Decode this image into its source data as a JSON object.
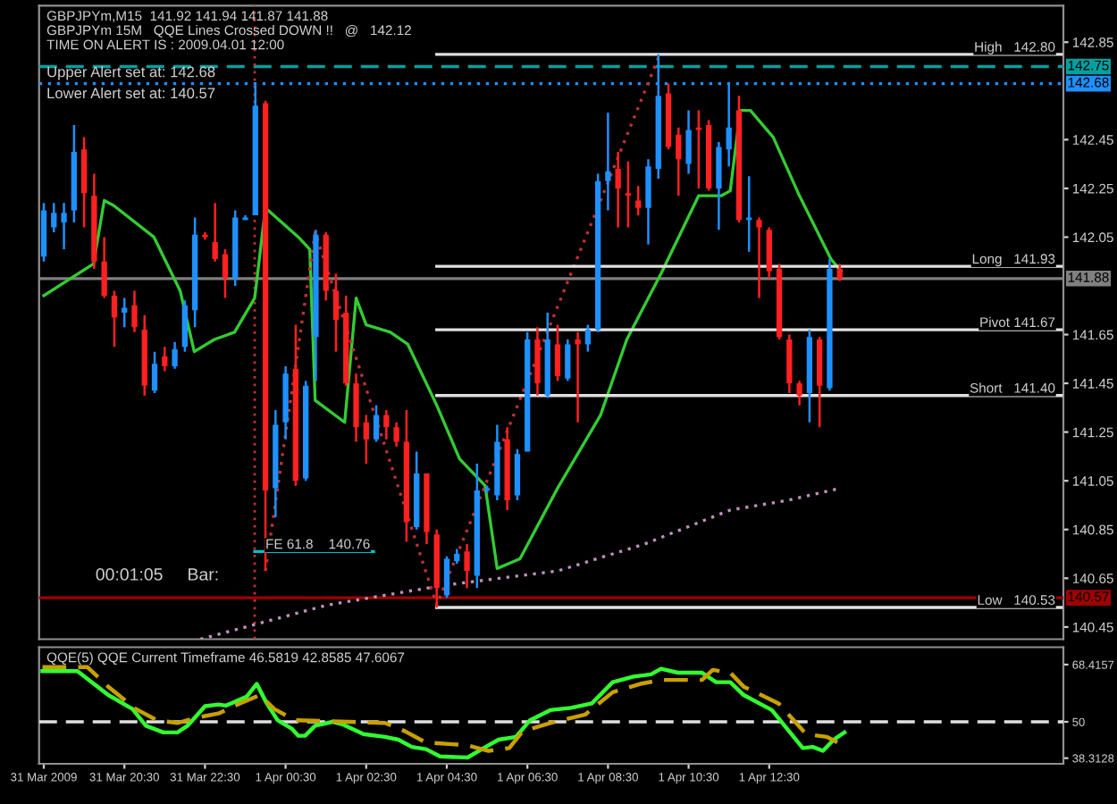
{
  "chart_data": [
    {
      "type": "candlestick",
      "title": "GBPJPYm,M15  141.92 141.94 141.87 141.88",
      "x": [
        "2009-03-31T18:30",
        "2009-03-31T18:45",
        "2009-03-31T19:00",
        "2009-03-31T19:15",
        "2009-03-31T19:30",
        "2009-03-31T19:45",
        "2009-03-31T20:00",
        "2009-03-31T20:15",
        "2009-03-31T20:30",
        "2009-03-31T20:45",
        "2009-03-31T21:00",
        "2009-03-31T21:15",
        "2009-03-31T21:30",
        "2009-03-31T21:45",
        "2009-03-31T22:00",
        "2009-03-31T22:15",
        "2009-03-31T22:30",
        "2009-03-31T22:45",
        "2009-03-31T23:00",
        "2009-03-31T23:15",
        "2009-03-31T23:30",
        "2009-03-31T23:45",
        "2009-04-01T00:00",
        "2009-04-01T00:15",
        "2009-04-01T00:30",
        "2009-04-01T00:45",
        "2009-04-01T01:00",
        "2009-04-01T01:15",
        "2009-04-01T01:30",
        "2009-04-01T01:45",
        "2009-04-01T02:00",
        "2009-04-01T02:15",
        "2009-04-01T02:30",
        "2009-04-01T02:45",
        "2009-04-01T03:00",
        "2009-04-01T03:15",
        "2009-04-01T03:30",
        "2009-04-01T03:45",
        "2009-04-01T04:00",
        "2009-04-01T04:15",
        "2009-04-01T04:30",
        "2009-04-01T04:45",
        "2009-04-01T05:00",
        "2009-04-01T05:15",
        "2009-04-01T05:30",
        "2009-04-01T05:45",
        "2009-04-01T06:00",
        "2009-04-01T06:15",
        "2009-04-01T06:30",
        "2009-04-01T06:45",
        "2009-04-01T07:00",
        "2009-04-01T07:15",
        "2009-04-01T07:30",
        "2009-04-01T07:45",
        "2009-04-01T08:00",
        "2009-04-01T08:15",
        "2009-04-01T08:30",
        "2009-04-01T08:45",
        "2009-04-01T09:00",
        "2009-04-01T09:15",
        "2009-04-01T09:30",
        "2009-04-01T09:45",
        "2009-04-01T10:00",
        "2009-04-01T10:15",
        "2009-04-01T10:30",
        "2009-04-01T10:45",
        "2009-04-01T11:00",
        "2009-04-01T11:15",
        "2009-04-01T11:30",
        "2009-04-01T11:45",
        "2009-04-01T12:00",
        "2009-04-01T12:15",
        "2009-04-01T12:30",
        "2009-04-01T12:45",
        "2009-04-01T13:00",
        "2009-04-01T13:15",
        "2009-04-01T13:30",
        "2009-04-01T13:45",
        "2009-04-01T14:00",
        "2009-04-01T14:15"
      ],
      "ohlc": [
        [
          141.97,
          142.19,
          141.95,
          142.16
        ],
        [
          142.09,
          142.19,
          142.07,
          142.15
        ],
        [
          142.11,
          142.19,
          142.0,
          142.15
        ],
        [
          142.16,
          142.51,
          142.11,
          142.4
        ],
        [
          142.41,
          142.46,
          142.09,
          142.23
        ],
        [
          142.22,
          142.31,
          141.92,
          141.95
        ],
        [
          141.95,
          142.05,
          141.8,
          141.81
        ],
        [
          141.81,
          141.83,
          141.6,
          141.72
        ],
        [
          141.74,
          141.8,
          141.68,
          141.76
        ],
        [
          141.77,
          141.83,
          141.66,
          141.68
        ],
        [
          141.67,
          141.73,
          141.4,
          141.44
        ],
        [
          141.42,
          141.58,
          141.41,
          141.53
        ],
        [
          141.56,
          141.6,
          141.5,
          141.52
        ],
        [
          141.52,
          141.62,
          141.51,
          141.59
        ],
        [
          141.6,
          141.79,
          141.58,
          141.77
        ],
        [
          141.75,
          142.13,
          141.68,
          142.06
        ],
        [
          142.06,
          142.07,
          142.04,
          142.05
        ],
        [
          142.03,
          142.19,
          141.95,
          141.96
        ],
        [
          141.98,
          142.0,
          141.8,
          141.88
        ],
        [
          141.88,
          142.16,
          141.85,
          142.13
        ],
        [
          142.12,
          142.14,
          142.12,
          142.13
        ],
        [
          142.14,
          142.68,
          142.14,
          142.59
        ],
        [
          142.6,
          142.61,
          140.68,
          141.01
        ],
        [
          141.02,
          141.34,
          140.9,
          141.28
        ],
        [
          141.29,
          141.52,
          141.22,
          141.49
        ],
        [
          141.51,
          141.69,
          141.03,
          141.05
        ],
        [
          141.06,
          141.46,
          141.05,
          141.44
        ],
        [
          141.64,
          142.08,
          141.46,
          142.06
        ],
        [
          142.06,
          142.07,
          141.79,
          141.83
        ],
        [
          141.83,
          141.9,
          141.58,
          141.71
        ],
        [
          141.74,
          141.81,
          141.44,
          141.45
        ],
        [
          141.45,
          141.49,
          141.21,
          141.27
        ],
        [
          141.29,
          141.32,
          141.12,
          141.22
        ],
        [
          141.22,
          141.36,
          141.21,
          141.32
        ],
        [
          141.32,
          141.34,
          141.22,
          141.27
        ],
        [
          141.27,
          141.29,
          141.19,
          141.21
        ],
        [
          141.21,
          141.34,
          140.8,
          140.88
        ],
        [
          140.86,
          141.17,
          140.85,
          141.08
        ],
        [
          141.08,
          141.08,
          140.79,
          140.84
        ],
        [
          140.83,
          140.85,
          140.53,
          140.61
        ],
        [
          140.58,
          140.74,
          140.57,
          140.73
        ],
        [
          140.72,
          140.77,
          140.71,
          140.75
        ],
        [
          140.76,
          140.79,
          140.61,
          140.68
        ],
        [
          140.66,
          141.12,
          140.61,
          141.01
        ],
        [
          141.01,
          141.03,
          141.0,
          141.02
        ],
        [
          140.99,
          141.28,
          140.97,
          141.21
        ],
        [
          141.22,
          141.27,
          140.93,
          140.97
        ],
        [
          140.99,
          141.18,
          140.97,
          141.16
        ],
        [
          141.17,
          141.66,
          141.17,
          141.63
        ],
        [
          141.63,
          141.68,
          141.4,
          141.45
        ],
        [
          141.4,
          141.74,
          141.39,
          141.63
        ],
        [
          141.61,
          141.69,
          141.46,
          141.48
        ],
        [
          141.47,
          141.63,
          141.46,
          141.61
        ],
        [
          141.63,
          141.66,
          141.29,
          141.61
        ],
        [
          141.61,
          141.69,
          141.58,
          141.67
        ],
        [
          141.67,
          142.31,
          141.66,
          142.28
        ],
        [
          142.28,
          142.56,
          142.16,
          142.32
        ],
        [
          142.33,
          142.4,
          142.09,
          142.25
        ],
        [
          142.23,
          142.36,
          142.09,
          142.22
        ],
        [
          142.2,
          142.26,
          142.14,
          142.17
        ],
        [
          142.17,
          142.37,
          142.02,
          142.34
        ],
        [
          142.33,
          142.8,
          142.29,
          142.63
        ],
        [
          142.64,
          142.68,
          142.41,
          142.42
        ],
        [
          142.47,
          142.5,
          142.22,
          142.37
        ],
        [
          142.35,
          142.57,
          142.31,
          142.49
        ],
        [
          142.5,
          142.57,
          142.25,
          142.49
        ],
        [
          142.51,
          142.53,
          142.24,
          142.25
        ],
        [
          142.25,
          142.44,
          142.08,
          142.42
        ],
        [
          142.41,
          142.68,
          142.34,
          142.5
        ],
        [
          142.57,
          142.63,
          142.11,
          142.12
        ],
        [
          142.12,
          142.3,
          141.99,
          142.13
        ],
        [
          142.12,
          142.13,
          141.8,
          142.09
        ],
        [
          142.08,
          142.09,
          141.88,
          141.91
        ],
        [
          141.92,
          141.94,
          141.63,
          141.64
        ],
        [
          141.63,
          141.65,
          141.41,
          141.45
        ],
        [
          141.45,
          141.46,
          141.36,
          141.4
        ],
        [
          141.41,
          141.67,
          141.29,
          141.64
        ],
        [
          141.63,
          141.64,
          141.27,
          141.44
        ],
        [
          141.43,
          141.96,
          141.42,
          141.92
        ],
        [
          141.92,
          141.94,
          141.87,
          141.88
        ]
      ],
      "colors": [
        "#1e90ff",
        "#1e90ff",
        "#1e90ff",
        "#1e90ff",
        "#ff2020",
        "#ff2020",
        "#ff2020",
        "#ff2020",
        "#1e90ff",
        "#ff2020",
        "#ff2020",
        "#1e90ff",
        "#ff2020",
        "#1e90ff",
        "#1e90ff",
        "#1e90ff",
        "#ff2020",
        "#ff2020",
        "#ff2020",
        "#1e90ff",
        "#1e90ff",
        "#1e90ff",
        "#ff2020",
        "#1e90ff",
        "#1e90ff",
        "#ff2020",
        "#1e90ff",
        "#1e90ff",
        "#ff2020",
        "#ff2020",
        "#ff2020",
        "#ff2020",
        "#ff2020",
        "#1e90ff",
        "#ff2020",
        "#ff2020",
        "#ff2020",
        "#1e90ff",
        "#ff2020",
        "#ff2020",
        "#1e90ff",
        "#1e90ff",
        "#ff2020",
        "#1e90ff",
        "#1e90ff",
        "#1e90ff",
        "#ff2020",
        "#1e90ff",
        "#1e90ff",
        "#ff2020",
        "#1e90ff",
        "#ff2020",
        "#1e90ff",
        "#ff2020",
        "#1e90ff",
        "#1e90ff",
        "#1e90ff",
        "#ff2020",
        "#ff2020",
        "#ff2020",
        "#1e90ff",
        "#1e90ff",
        "#ff2020",
        "#ff2020",
        "#1e90ff",
        "#ff2020",
        "#ff2020",
        "#1e90ff",
        "#1e90ff",
        "#ff2020",
        "#1e90ff",
        "#ff2020",
        "#ff2020",
        "#ff2020",
        "#ff2020",
        "#ff2020",
        "#1e90ff",
        "#ff2020",
        "#1e90ff",
        "#ff2020"
      ],
      "series": [
        {
          "type": "line",
          "color": "#32cd32",
          "line_style": "solid",
          "x": [
            "2009-03-31T18:30",
            "2009-03-31T19:44",
            "2009-03-31T20:00",
            "2009-03-31T20:14",
            "2009-03-31T21:14",
            "2009-03-31T21:53",
            "2009-03-31T22:14",
            "2009-03-31T22:44",
            "2009-03-31T23:14",
            "2009-03-31T23:44",
            "2009-04-01T00:00",
            "2009-04-01T00:49",
            "2009-04-01T01:06",
            "2009-04-01T01:14",
            "2009-04-01T01:58",
            "2009-04-01T02:15",
            "2009-04-01T02:30",
            "2009-04-01T03:06",
            "2009-04-01T03:32",
            "2009-04-01T04:15",
            "2009-04-01T04:49",
            "2009-04-01T05:27",
            "2009-04-01T05:45",
            "2009-04-01T06:19",
            "2009-04-01T07:15",
            "2009-04-01T08:19",
            "2009-04-01T08:58",
            "2009-04-01T09:49",
            "2009-04-01T10:45",
            "2009-04-01T11:19",
            "2009-04-01T11:32",
            "2009-04-01T11:47",
            "2009-04-01T12:02",
            "2009-04-01T12:36",
            "2009-04-01T13:15",
            "2009-04-01T14:02",
            "2009-04-01T14:17"
          ],
          "values": [
            141.81,
            141.94,
            142.2,
            142.18,
            142.05,
            141.83,
            141.58,
            141.63,
            141.66,
            141.8,
            142.17,
            142.05,
            142.0,
            141.38,
            141.29,
            141.8,
            141.69,
            141.66,
            141.61,
            141.36,
            141.14,
            141.03,
            140.69,
            140.73,
            141.02,
            141.32,
            141.63,
            141.9,
            142.22,
            142.22,
            142.24,
            142.57,
            142.57,
            142.46,
            142.22,
            141.96,
            141.91
          ]
        },
        {
          "type": "line",
          "color": "#c090c0",
          "line_style": "dotted",
          "x": [
            "2009-03-31T22:23",
            "2009-04-01T01:32",
            "2009-04-01T04:23",
            "2009-04-01T07:15",
            "2009-04-01T09:24",
            "2009-04-01T11:32",
            "2009-04-01T12:58",
            "2009-04-01T14:17"
          ],
          "values": [
            140.4,
            140.54,
            140.62,
            140.68,
            140.79,
            140.93,
            140.97,
            141.02
          ]
        },
        {
          "type": "line",
          "color": "#c03030",
          "line_style": "dotted",
          "x": [
            "2009-04-01T00:00",
            "2009-04-01T01:14",
            "2009-04-01T04:15",
            "2009-04-01T09:47"
          ],
          "values": [
            140.68,
            142.07,
            140.54,
            142.8
          ]
        },
        {
          "type": "line",
          "color": "#e0e0e0",
          "line_style": "solid",
          "x": [
            "2009-04-01T04:15",
            "2009-04-01T19:45"
          ],
          "values": [
            142.8,
            142.8
          ]
        },
        {
          "type": "line",
          "color": "#e0e0e0",
          "line_style": "solid",
          "x": [
            "2009-04-01T04:15",
            "2009-04-01T19:45"
          ],
          "values": [
            141.93,
            141.93
          ]
        },
        {
          "type": "line",
          "color": "#e0e0e0",
          "line_style": "solid",
          "x": [
            "2009-04-01T04:15",
            "2009-04-01T19:45"
          ],
          "values": [
            141.67,
            141.67
          ]
        },
        {
          "type": "line",
          "color": "#e0e0e0",
          "line_style": "solid",
          "x": [
            "2009-04-01T04:15",
            "2009-04-01T19:45"
          ],
          "values": [
            141.4,
            141.4
          ]
        },
        {
          "type": "line",
          "color": "#e0e0e0",
          "line_style": "solid",
          "x": [
            "2009-04-01T04:15",
            "2009-04-01T19:45"
          ],
          "values": [
            140.53,
            140.53
          ]
        },
        {
          "type": "line",
          "color": "#00c0c0",
          "line_style": "solid",
          "x": [
            "2009-03-31T23:44",
            "2009-04-01T02:41"
          ],
          "values": [
            140.76,
            140.76
          ]
        }
      ],
      "ref_lines": [
        {
          "axis": "y",
          "value": 142.75,
          "label": "142.75",
          "color": "#00a0a0",
          "line_style": "dashed"
        },
        {
          "axis": "y",
          "value": 142.68,
          "label": "142.68",
          "color": "#1e90ff",
          "line_style": "dotted"
        },
        {
          "axis": "y",
          "value": 141.88,
          "label": "141.88",
          "color": "#808080",
          "line_style": "solid"
        },
        {
          "axis": "y",
          "value": 140.57,
          "label": "140.57",
          "color": "#a00000",
          "line_style": "solid"
        },
        {
          "axis": "x",
          "value": "2009-03-31T23:44",
          "color": "#c03030",
          "line_style": "dotted"
        }
      ],
      "annotations": [
        "GBPJPYm 15M   QQE Lines Crossed DOWN !!   @   142.12",
        "TIME ON ALERT IS : 2009.04.01 12:00",
        "Upper Alert set at: 142.68",
        "Lower Alert set at: 140.57",
        {
          "text": "High   142.80",
          "x": "2009-04-01T19:36",
          "y": 142.8
        },
        {
          "text": "Long   141.93",
          "x": "2009-04-01T19:36",
          "y": 141.93
        },
        {
          "text": "Pivot 141.67",
          "x": "2009-04-01T19:36",
          "y": 141.67
        },
        {
          "text": "Short   141.40",
          "x": "2009-04-01T19:36",
          "y": 141.4
        },
        {
          "text": "Low   140.53",
          "x": "2009-04-01T19:36",
          "y": 140.53
        },
        {
          "text": "FE 61.8    140.76",
          "x": "2009-04-01T00:00",
          "y": 140.76
        },
        "00:01:05     Bar:"
      ],
      "xlim": [
        "2009-03-31T18:23",
        "2009-04-01T19:48"
      ],
      "ylim": [
        140.4,
        143.0
      ],
      "yticks": [
        140.45,
        140.65,
        140.85,
        141.05,
        141.25,
        141.45,
        141.65,
        142.05,
        142.25,
        142.45,
        142.85
      ],
      "tick_labels": "y"
    },
    {
      "type": "line",
      "title": "QQE(5) QQE Current Timeframe 46.5819 42.8585 47.6067",
      "series": [
        {
          "color": "#32ff32",
          "line_style": "solid",
          "x": [
            "2009-03-31T18:28",
            "2009-03-31T19:20",
            "2009-03-31T20:06",
            "2009-03-31T20:42",
            "2009-03-31T21:02",
            "2009-03-31T21:28",
            "2009-03-31T21:49",
            "2009-03-31T22:04",
            "2009-03-31T22:30",
            "2009-03-31T22:50",
            "2009-03-31T23:01",
            "2009-03-31T23:32",
            "2009-03-31T23:47",
            "2009-04-01T00:02",
            "2009-04-01T00:18",
            "2009-04-01T00:39",
            "2009-04-01T00:49",
            "2009-04-01T00:59",
            "2009-04-01T01:14",
            "2009-04-01T01:40",
            "2009-04-01T01:56",
            "2009-04-01T02:26",
            "2009-04-01T02:58",
            "2009-04-01T03:18",
            "2009-04-01T03:38",
            "2009-04-01T03:59",
            "2009-04-01T04:20",
            "2009-04-01T05:01",
            "2009-04-01T05:22",
            "2009-04-01T05:47",
            "2009-04-01T06:13",
            "2009-04-01T06:34",
            "2009-04-01T07:04",
            "2009-04-01T07:35",
            "2009-04-01T08:06",
            "2009-04-01T08:37",
            "2009-04-01T09:08",
            "2009-04-01T09:34",
            "2009-04-01T09:49",
            "2009-04-01T10:14",
            "2009-04-01T10:50",
            "2009-04-01T11:11",
            "2009-04-01T11:32",
            "2009-04-01T11:52",
            "2009-04-01T12:34",
            "2009-04-01T13:20",
            "2009-04-01T13:35",
            "2009-04-01T13:50",
            "2009-04-01T14:06",
            "2009-04-01T14:22"
          ],
          "values": [
            66.34,
            66.34,
            58.62,
            54.13,
            48.74,
            46.59,
            46.59,
            48.74,
            55.03,
            55.57,
            55.21,
            58.08,
            62.21,
            55.93,
            50.54,
            47.84,
            45.51,
            45.51,
            48.74,
            50.0,
            49.1,
            46.05,
            45.15,
            44.25,
            41.92,
            41.2,
            38.86,
            38.51,
            41.2,
            44.25,
            45.15,
            50.54,
            53.77,
            54.49,
            55.93,
            62.75,
            64.55,
            65.27,
            67.06,
            65.8,
            65.8,
            62.75,
            62.75,
            58.62,
            53.77,
            41.56,
            41.92,
            40.66,
            44.25,
            46.58
          ]
        },
        {
          "color": "#c8a000",
          "line_style": "dashed",
          "x": [
            "2009-03-31T18:28",
            "2009-03-31T19:35",
            "2009-03-31T20:06",
            "2009-03-31T20:47",
            "2009-03-31T21:18",
            "2009-03-31T21:49",
            "2009-03-31T22:20",
            "2009-03-31T22:50",
            "2009-03-31T23:22",
            "2009-03-31T23:52",
            "2009-04-01T00:13",
            "2009-04-01T00:44",
            "2009-04-01T02:58",
            "2009-04-01T03:28",
            "2009-04-01T03:59",
            "2009-04-01T05:01",
            "2009-04-01T05:32",
            "2009-04-01T06:03",
            "2009-04-01T06:23",
            "2009-04-01T07:04",
            "2009-04-01T07:56",
            "2009-04-01T08:37",
            "2009-04-01T09:18",
            "2009-04-01T09:49",
            "2009-04-01T10:50",
            "2009-04-01T11:06",
            "2009-04-01T11:32",
            "2009-04-01T11:52",
            "2009-04-01T12:44",
            "2009-04-01T13:25",
            "2009-04-01T13:56",
            "2009-04-01T14:16"
          ],
          "values": [
            67.6,
            67.6,
            61.31,
            54.13,
            50.54,
            49.64,
            51.44,
            52.69,
            55.93,
            58.62,
            54.13,
            50.54,
            49.64,
            46.95,
            43.35,
            42.46,
            40.66,
            41.56,
            46.95,
            49.64,
            52.33,
            59.52,
            62.21,
            63.47,
            63.47,
            66.7,
            65.8,
            61.31,
            55.93,
            46.05,
            45.15,
            42.86
          ]
        }
      ],
      "ref_lines": [
        {
          "axis": "y",
          "value": 50,
          "color": "#e0e0e0",
          "line_style": "dashed"
        }
      ],
      "xlim": [
        "2009-03-31T18:23",
        "2009-04-01T19:48"
      ],
      "ylim": [
        36.5,
        74
      ],
      "xticks": [
        {
          "value": "2009-03-31T18:30",
          "label": "31 Mar 2009"
        },
        {
          "value": "2009-03-31T20:30",
          "label": "31 Mar 20:30"
        },
        {
          "value": "2009-03-31T22:30",
          "label": "31 Mar 22:30"
        },
        {
          "value": "2009-04-01T00:30",
          "label": "1 Apr 00:30"
        },
        {
          "value": "2009-04-01T02:30",
          "label": "1 Apr 02:30"
        },
        {
          "value": "2009-04-01T04:30",
          "label": "1 Apr 04:30"
        },
        {
          "value": "2009-04-01T06:30",
          "label": "1 Apr 06:30"
        },
        {
          "value": "2009-04-01T08:30",
          "label": "1 Apr 08:30"
        },
        {
          "value": "2009-04-01T10:30",
          "label": "1 Apr 10:30"
        },
        {
          "value": "2009-04-01T12:30",
          "label": "1 Apr 12:30"
        }
      ],
      "yticks": [
        38.3128,
        50,
        68.4157
      ]
    }
  ]
}
